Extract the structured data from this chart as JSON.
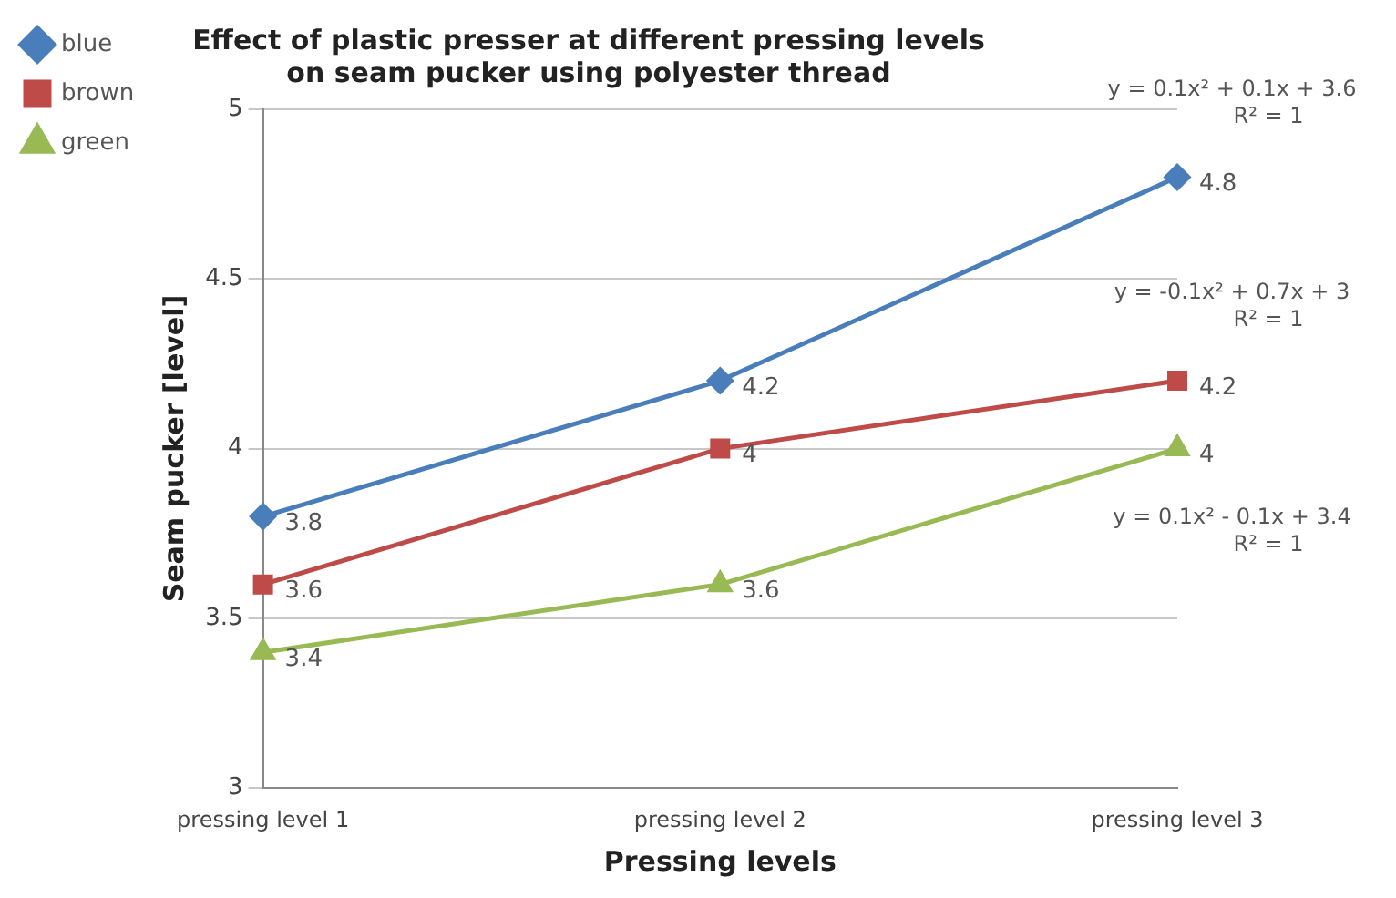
{
  "chart_data": {
    "type": "line",
    "title": "Effect of plastic presser at different pressing levels on seam pucker using polyester thread",
    "xlabel": "Pressing levels",
    "ylabel": "Seam pucker [level]",
    "categories": [
      "pressing level 1",
      "pressing level 2",
      "pressing level 3"
    ],
    "series": [
      {
        "name": "blue",
        "color": "#4a7ebb",
        "marker": "diamond",
        "values": [
          3.8,
          4.2,
          4.8
        ]
      },
      {
        "name": "brown",
        "color": "#be4b48",
        "marker": "square",
        "values": [
          3.6,
          4.0,
          4.2
        ]
      },
      {
        "name": "green",
        "color": "#98b954",
        "marker": "triangle",
        "values": [
          3.4,
          3.6,
          4.0
        ]
      }
    ],
    "ylim": [
      3,
      5
    ],
    "yticks": [
      3,
      3.5,
      4,
      4.5,
      5
    ],
    "grid": "y",
    "legend": "top left",
    "data_labels": true,
    "annotations": [
      {
        "text": "y = 0.1x² + 0.1x + 3.6\nR² = 1",
        "x": "pressing level 3",
        "y": 4.8
      },
      {
        "text": "y = -0.1x² + 0.7x + 3\nR² = 1",
        "x": "pressing level 3",
        "y": 4.2
      },
      {
        "text": "y = 0.1x² - 0.1x + 3.4\nR² = 1",
        "x": "pressing level 3",
        "y": 4.0
      }
    ]
  }
}
